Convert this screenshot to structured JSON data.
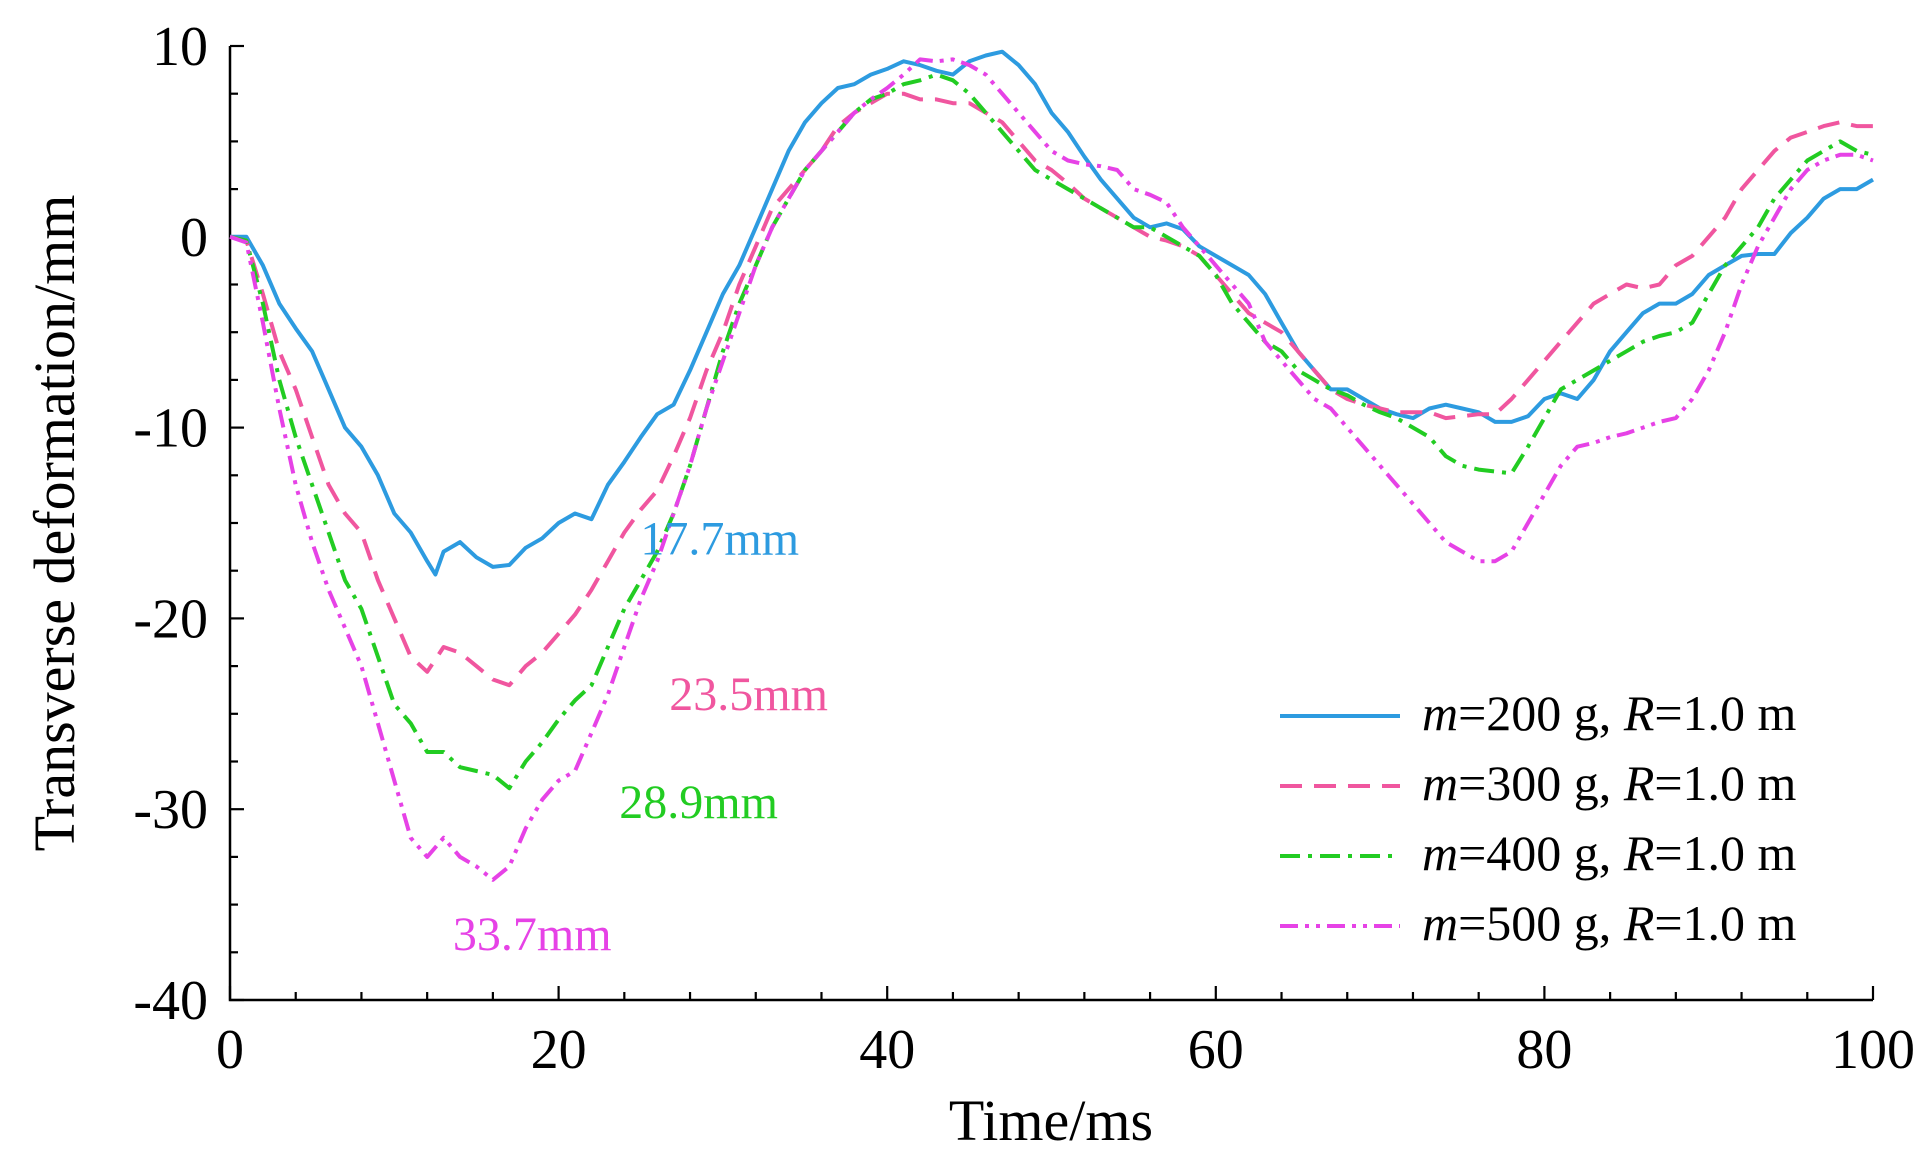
{
  "chart_data": {
    "type": "line",
    "title": "",
    "xlabel": "Time/ms",
    "ylabel": "Transverse deformation/mm",
    "xlim": [
      0,
      100
    ],
    "ylim": [
      -40,
      10
    ],
    "xticks": [
      "0",
      "20",
      "40",
      "60",
      "80",
      "100"
    ],
    "yticks": [
      "10",
      "0",
      "-10",
      "-20",
      "-30",
      "-40"
    ],
    "grid": false,
    "legend_position": "bottom-right",
    "series": [
      {
        "name": "m=200 g, R=1.0 m",
        "legend": {
          "m": "m",
          "mval": "=200 g, ",
          "r": "R",
          "rval": "=1.0 m"
        },
        "color": "#2d9be0",
        "dash": "solid",
        "x": [
          0,
          1,
          2,
          3,
          4,
          5,
          6,
          7,
          8,
          9,
          10,
          11,
          12,
          12.5,
          13,
          14,
          15,
          16,
          17,
          18,
          19,
          20,
          21,
          22,
          23,
          24,
          25,
          26,
          27,
          28,
          29,
          30,
          31,
          32,
          33,
          34,
          35,
          36,
          37,
          38,
          39,
          40,
          41,
          42,
          43,
          44,
          45,
          46,
          47,
          48,
          49,
          50,
          51,
          52,
          53,
          54,
          55,
          56,
          57,
          58,
          59,
          60,
          61,
          62,
          63,
          64,
          65,
          66,
          67,
          68,
          69,
          70,
          71,
          72,
          73,
          74,
          75,
          76,
          77,
          78,
          79,
          80,
          81,
          82,
          83,
          84,
          85,
          86,
          87,
          88,
          89,
          90,
          91,
          92,
          93,
          94,
          95,
          96,
          97,
          98,
          99,
          100
        ],
        "values": [
          0,
          0,
          -1.5,
          -3.5,
          -4.8,
          -6,
          -8,
          -10,
          -11,
          -12.5,
          -14.5,
          -15.5,
          -17,
          -17.7,
          -16.5,
          -16,
          -16.8,
          -17.3,
          -17.2,
          -16.3,
          -15.8,
          -15,
          -14.5,
          -14.8,
          -13,
          -11.8,
          -10.5,
          -9.3,
          -8.8,
          -7,
          -5,
          -3,
          -1.5,
          0.5,
          2.5,
          4.5,
          6,
          7,
          7.8,
          8,
          8.5,
          8.8,
          9.2,
          9,
          8.7,
          8.5,
          9.2,
          9.5,
          9.7,
          9,
          8,
          6.5,
          5.5,
          4.2,
          3,
          2,
          1,
          0.5,
          0.7,
          0.4,
          -0.5,
          -1,
          -1.5,
          -2,
          -3,
          -4.5,
          -6,
          -7,
          -8,
          -8,
          -8.5,
          -9,
          -9.3,
          -9.5,
          -9,
          -8.8,
          -9,
          -9.2,
          -9.7,
          -9.7,
          -9.4,
          -8.5,
          -8.2,
          -8.5,
          -7.5,
          -6,
          -5,
          -4,
          -3.5,
          -3.5,
          -3,
          -2,
          -1.5,
          -1,
          -0.9,
          -0.9,
          0.2,
          1,
          2,
          2.5,
          2.5,
          3
        ]
      },
      {
        "name": "m=300 g, R=1.0 m",
        "legend": {
          "m": "m",
          "mval": "=300 g, ",
          "r": "R",
          "rval": "=1.0 m"
        },
        "color": "#f0569f",
        "dash": "dashed",
        "x": [
          0,
          1,
          2,
          3,
          4,
          5,
          6,
          7,
          8,
          9,
          10,
          11,
          12,
          13,
          14,
          15,
          16,
          17,
          18,
          19,
          20,
          21,
          22,
          23,
          24,
          25,
          26,
          27,
          28,
          29,
          30,
          31,
          32,
          33,
          34,
          35,
          36,
          37,
          38,
          39,
          40,
          41,
          42,
          43,
          44,
          45,
          46,
          47,
          48,
          49,
          50,
          51,
          52,
          53,
          54,
          55,
          56,
          57,
          58,
          59,
          60,
          61,
          62,
          63,
          64,
          65,
          66,
          67,
          68,
          69,
          70,
          71,
          72,
          73,
          74,
          75,
          76,
          77,
          78,
          79,
          80,
          81,
          82,
          83,
          84,
          85,
          86,
          87,
          88,
          89,
          90,
          91,
          92,
          93,
          94,
          95,
          96,
          97,
          98,
          99,
          100
        ],
        "values": [
          0,
          -0.2,
          -3,
          -6,
          -8,
          -10.5,
          -13,
          -14.5,
          -15.5,
          -18,
          -20,
          -22,
          -22.8,
          -21.5,
          -21.8,
          -22.5,
          -23.2,
          -23.5,
          -22.5,
          -21.8,
          -20.8,
          -19.8,
          -18.5,
          -17,
          -15.5,
          -14.3,
          -13.3,
          -11.5,
          -9.5,
          -7,
          -5,
          -2.5,
          -0.5,
          1.5,
          2.5,
          3.5,
          4.5,
          5.8,
          6.5,
          7,
          7.5,
          7.5,
          7.2,
          7.2,
          7,
          7,
          6.5,
          6,
          5,
          4,
          3.5,
          2.8,
          2,
          1.5,
          1,
          0.5,
          0,
          -0.2,
          -0.5,
          -1,
          -2,
          -3,
          -4,
          -4.5,
          -5,
          -6,
          -7,
          -8,
          -8.5,
          -8.8,
          -9,
          -9.2,
          -9.2,
          -9.2,
          -9.5,
          -9.4,
          -9.3,
          -9.3,
          -8.5,
          -7.5,
          -6.5,
          -5.5,
          -4.5,
          -3.5,
          -3,
          -2.5,
          -2.7,
          -2.5,
          -1.5,
          -1,
          0,
          1,
          2.5,
          3.5,
          4.5,
          5.2,
          5.5,
          5.8,
          6,
          5.8,
          5.8
        ]
      },
      {
        "name": "m=400 g, R=1.0 m",
        "legend": {
          "m": "m",
          "mval": "=400 g, ",
          "r": "R",
          "rval": "=1.0 m"
        },
        "color": "#22cc22",
        "dash": "dash-dot",
        "x": [
          0,
          1,
          2,
          3,
          4,
          5,
          6,
          7,
          8,
          9,
          10,
          11,
          12,
          13,
          14,
          15,
          16,
          17,
          18,
          19,
          20,
          21,
          22,
          23,
          24,
          25,
          26,
          27,
          28,
          29,
          30,
          31,
          32,
          33,
          34,
          35,
          36,
          37,
          38,
          39,
          40,
          41,
          42,
          43,
          44,
          45,
          46,
          47,
          48,
          49,
          50,
          51,
          52,
          53,
          54,
          55,
          56,
          57,
          58,
          59,
          60,
          61,
          62,
          63,
          64,
          65,
          66,
          67,
          68,
          69,
          70,
          71,
          72,
          73,
          74,
          75,
          76,
          77,
          78,
          79,
          80,
          81,
          82,
          83,
          84,
          85,
          86,
          87,
          88,
          89,
          90,
          91,
          92,
          93,
          94,
          95,
          96,
          97,
          98,
          99,
          100
        ],
        "values": [
          0,
          -0.2,
          -3.5,
          -7.5,
          -10.5,
          -13,
          -15.5,
          -18,
          -19.5,
          -22,
          -24.5,
          -25.5,
          -27,
          -27,
          -27.8,
          -28,
          -28.2,
          -28.9,
          -27.5,
          -26.5,
          -25.3,
          -24.3,
          -23.5,
          -21.5,
          -19.5,
          -18,
          -16.5,
          -14.5,
          -12,
          -9,
          -6,
          -3.5,
          -1.5,
          0.5,
          2,
          3.5,
          4.5,
          5.5,
          6.5,
          7.2,
          7.5,
          8,
          8.2,
          8.5,
          8.2,
          7.5,
          6.5,
          5.5,
          4.5,
          3.5,
          3,
          2.5,
          2,
          1.5,
          1,
          0.5,
          0.5,
          0,
          -0.5,
          -1,
          -2,
          -3.5,
          -4.5,
          -5.5,
          -6,
          -7,
          -7.5,
          -8,
          -8.3,
          -8.8,
          -9.2,
          -9.5,
          -10,
          -10.5,
          -11.5,
          -12,
          -12.2,
          -12.3,
          -12.4,
          -11,
          -9.5,
          -8,
          -7.5,
          -7,
          -6.5,
          -6,
          -5.5,
          -5.2,
          -5,
          -4.5,
          -3,
          -1.5,
          -0.5,
          0.5,
          2,
          3,
          4,
          4.5,
          5,
          4.5,
          4.3
        ]
      },
      {
        "name": "m=500 g, R=1.0 m",
        "legend": {
          "m": "m",
          "mval": "=500 g, ",
          "r": "R",
          "rval": "=1.0 m"
        },
        "color": "#e642e6",
        "dash": "dash-dot-dot",
        "x": [
          0,
          1,
          2,
          3,
          4,
          5,
          6,
          7,
          8,
          9,
          10,
          11,
          12,
          13,
          14,
          15,
          16,
          17,
          18,
          19,
          20,
          21,
          22,
          23,
          24,
          25,
          26,
          27,
          28,
          29,
          30,
          31,
          32,
          33,
          34,
          35,
          36,
          37,
          38,
          39,
          40,
          41,
          42,
          43,
          44,
          45,
          46,
          47,
          48,
          49,
          50,
          51,
          52,
          53,
          54,
          55,
          56,
          57,
          58,
          59,
          60,
          61,
          62,
          63,
          64,
          65,
          66,
          67,
          68,
          69,
          70,
          71,
          72,
          73,
          74,
          75,
          76,
          77,
          78,
          79,
          80,
          81,
          82,
          83,
          84,
          85,
          86,
          87,
          88,
          89,
          90,
          91,
          92,
          93,
          94,
          95,
          96,
          97,
          98,
          99,
          100
        ],
        "values": [
          0,
          -0.3,
          -4.5,
          -9,
          -13,
          -16,
          -18.5,
          -20.5,
          -22.5,
          -25.5,
          -28.5,
          -31.5,
          -32.5,
          -31.5,
          -32.5,
          -33,
          -33.7,
          -33,
          -31,
          -29.5,
          -28.5,
          -28,
          -26,
          -24,
          -21.5,
          -19,
          -17,
          -14.5,
          -12,
          -9,
          -6.5,
          -4,
          -1.5,
          0.5,
          2,
          3.5,
          4.5,
          5.5,
          6.5,
          7.2,
          7.8,
          8.5,
          9.3,
          9.2,
          9.3,
          9,
          8.5,
          7.5,
          6.5,
          5.5,
          4.5,
          4,
          3.8,
          3.7,
          3.5,
          2.5,
          2.2,
          1.8,
          0.5,
          -0.5,
          -1.5,
          -2.5,
          -3.5,
          -5.5,
          -6.5,
          -7.5,
          -8.5,
          -9,
          -10,
          -11,
          -12,
          -13,
          -14,
          -15,
          -16,
          -16.5,
          -17,
          -17,
          -16.5,
          -15,
          -13.5,
          -12,
          -11,
          -10.8,
          -10.5,
          -10.3,
          -10,
          -9.7,
          -9.5,
          -8.5,
          -7,
          -5,
          -2.5,
          -0.5,
          1,
          2.5,
          3.5,
          4,
          4.3,
          4.3,
          4
        ]
      }
    ],
    "annotations": [
      {
        "text": "17.7mm",
        "series": 0
      },
      {
        "text": "23.5mm",
        "series": 1
      },
      {
        "text": "28.9mm",
        "series": 2
      },
      {
        "text": "33.7mm",
        "series": 3
      }
    ]
  }
}
